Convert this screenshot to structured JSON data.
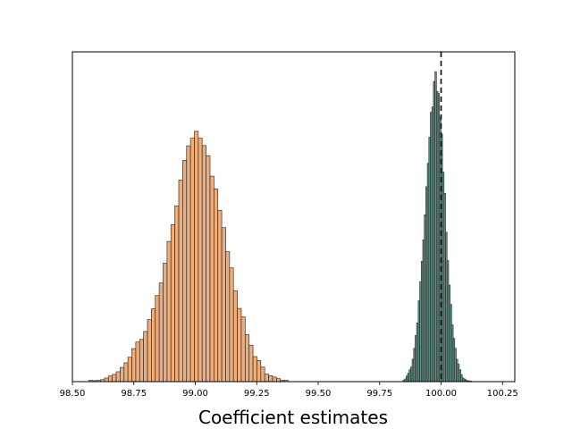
{
  "chart_data": {
    "type": "histogram",
    "title": "",
    "xlabel": "Coefficient estimates",
    "ylabel": "",
    "xlim": [
      98.5,
      100.3
    ],
    "ylim": [
      0,
      1.0
    ],
    "xticks": [
      "98.50",
      "98.75",
      "99.00",
      "99.25",
      "99.50",
      "99.75",
      "100.00",
      "100.25"
    ],
    "xtick_values": [
      98.5,
      98.75,
      99.0,
      99.25,
      99.5,
      99.75,
      100.0,
      100.25
    ],
    "yticks_visible": false,
    "grid": false,
    "legend": "none",
    "reference_line": {
      "x": 100.0,
      "style": "dashed",
      "color": "#000000"
    },
    "series": [
      {
        "color": "#e8924e",
        "edge_color": "#333333",
        "opacity": 0.75,
        "bin_width": 0.0159,
        "bin_start": 98.567,
        "heights": [
          0.004,
          0.003,
          0.004,
          0.006,
          0.011,
          0.017,
          0.022,
          0.03,
          0.043,
          0.057,
          0.074,
          0.1,
          0.12,
          0.128,
          0.152,
          0.188,
          0.221,
          0.261,
          0.299,
          0.359,
          0.425,
          0.476,
          0.533,
          0.611,
          0.671,
          0.715,
          0.738,
          0.759,
          0.738,
          0.716,
          0.685,
          0.623,
          0.584,
          0.519,
          0.467,
          0.394,
          0.345,
          0.275,
          0.222,
          0.196,
          0.142,
          0.11,
          0.076,
          0.064,
          0.044,
          0.023,
          0.018,
          0.014,
          0.009,
          0.004,
          0.004
        ]
      },
      {
        "color": "#2f7d6e",
        "edge_color": "#333333",
        "opacity": 0.75,
        "bin_width": 0.00619,
        "bin_start": 99.845,
        "heights": [
          0.004,
          0.008,
          0.017,
          0.025,
          0.036,
          0.044,
          0.068,
          0.101,
          0.14,
          0.178,
          0.245,
          0.303,
          0.365,
          0.43,
          0.506,
          0.591,
          0.662,
          0.741,
          0.817,
          0.833,
          0.91,
          0.94,
          0.88,
          0.874,
          0.802,
          0.751,
          0.635,
          0.571,
          0.453,
          0.367,
          0.293,
          0.234,
          0.172,
          0.131,
          0.101,
          0.068,
          0.053,
          0.036,
          0.021,
          0.011,
          0.008,
          0.005,
          0.003,
          0.002,
          0.002
        ]
      }
    ]
  }
}
